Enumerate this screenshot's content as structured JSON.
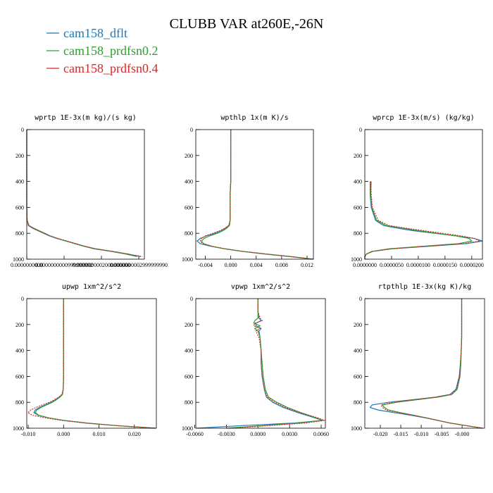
{
  "title": "CLUBB VAR at260E,-26N",
  "chart_data": [
    {
      "type": "line",
      "title": "wprtp  1E-3x(m kg)/(s kg)",
      "yaxis_inverted": true,
      "y": [
        0,
        100,
        200,
        300,
        400,
        500,
        600,
        700,
        740,
        760,
        780,
        800,
        820,
        840,
        860,
        880,
        900,
        920,
        940,
        960,
        980,
        1000
      ],
      "xlim": [
        0,
        3.15e-10
      ],
      "ylim": [
        0,
        1000
      ],
      "xticks": [
        {
          "value": 0,
          "label": "0.0000000000"
        },
        {
          "value": 1e-10,
          "label": "0.0000000000999999992"
        },
        {
          "value": 2e-10,
          "label": "0.0000000002000000000"
        },
        {
          "value": 3e-10,
          "label": "0.0000000002999999990"
        }
      ],
      "yticks": [
        0,
        200,
        400,
        600,
        800,
        1000
      ],
      "series": [
        {
          "name": "cam158_dflt",
          "color": "#1f77b4",
          "dash": false,
          "values": [
            0,
            0,
            0,
            0,
            0,
            0,
            0,
            1e-12,
            4e-12,
            1.5e-11,
            3e-11,
            4.5e-11,
            6e-11,
            8e-11,
            1.05e-10,
            1.3e-10,
            1.55e-10,
            1.85e-10,
            2.3e-10,
            2.7e-10,
            3.05e-10,
            null
          ]
        },
        {
          "name": "cam158_prdfsn0.2",
          "color": "#2ca02c",
          "dash": false,
          "values": [
            0,
            0,
            0,
            0,
            0,
            0,
            0,
            1e-12,
            6e-12,
            1.8e-11,
            3.3e-11,
            4.8e-11,
            6.3e-11,
            8.3e-11,
            1.05e-10,
            1.28e-10,
            1.52e-10,
            1.8e-10,
            2.25e-10,
            2.65e-10,
            2.95e-10,
            null
          ]
        },
        {
          "name": "cam158_prdfsn0.4",
          "color": "#d62728",
          "dash": true,
          "values": [
            0,
            0,
            0,
            0,
            0,
            0,
            0,
            1e-12,
            5e-12,
            1.7e-11,
            3.2e-11,
            4.7e-11,
            6.2e-11,
            8.2e-11,
            1.08e-10,
            1.32e-10,
            1.55e-10,
            1.83e-10,
            2.28e-10,
            2.7e-10,
            3.1e-10,
            null
          ]
        }
      ]
    },
    {
      "type": "line",
      "title": "wpthlp  1x(m K)/s",
      "yaxis_inverted": true,
      "y": [
        0,
        100,
        200,
        300,
        400,
        500,
        600,
        700,
        740,
        760,
        780,
        800,
        820,
        840,
        860,
        880,
        900,
        920,
        940,
        960,
        980,
        1000
      ],
      "xlim": [
        -0.0055,
        0.013
      ],
      "ylim": [
        0,
        1000
      ],
      "xticks": [
        -0.004,
        {
          "value": 0,
          "label": "0.000"
        },
        0.004,
        0.008,
        0.012
      ],
      "yticks": [
        0,
        200,
        400,
        600,
        800,
        1000
      ],
      "series": [
        {
          "name": "cam158_dflt",
          "color": "#1f77b4",
          "dash": false,
          "values": [
            0,
            0,
            0,
            0,
            0,
            -0.0001,
            -0.0001,
            -0.0001,
            -0.0003,
            -0.0008,
            -0.0015,
            -0.0025,
            -0.0038,
            -0.0048,
            -0.0053,
            -0.0048,
            -0.0032,
            -0.001,
            0.0018,
            0.0055,
            0.0095,
            0.013
          ]
        },
        {
          "name": "cam158_prdfsn0.2",
          "color": "#2ca02c",
          "dash": false,
          "values": [
            0,
            0,
            0,
            0,
            0,
            -0.0001,
            -0.0001,
            -0.0001,
            -0.0002,
            -0.0006,
            -0.0012,
            -0.0021,
            -0.0033,
            -0.0042,
            -0.0046,
            -0.0043,
            -0.003,
            -0.0009,
            0.0018,
            0.0053,
            0.0092,
            0.0128
          ]
        },
        {
          "name": "cam158_prdfsn0.4",
          "color": "#d62728",
          "dash": true,
          "values": [
            0,
            0,
            0,
            0,
            0,
            -0.0001,
            -0.0001,
            -0.0001,
            -0.0003,
            -0.0009,
            -0.0017,
            -0.0028,
            -0.004,
            -0.0046,
            -0.0048,
            -0.0044,
            -0.003,
            -0.0008,
            0.002,
            0.0056,
            0.0095,
            0.013
          ]
        }
      ]
    },
    {
      "type": "line",
      "title": "wprcp  1E-3x(m/s) (kg/kg)",
      "yaxis_inverted": true,
      "y": [
        0,
        100,
        200,
        300,
        400,
        500,
        600,
        700,
        740,
        760,
        780,
        800,
        820,
        840,
        860,
        880,
        900,
        920,
        940,
        960,
        980,
        1000
      ],
      "xlim": [
        0,
        2.2e-05
      ],
      "ylim": [
        0,
        1000
      ],
      "xticks": [
        {
          "value": 0,
          "label": "0.0000000"
        },
        {
          "value": 5e-06,
          "label": "0.0000050"
        },
        {
          "value": 1e-05,
          "label": "0.0000100"
        },
        {
          "value": 1.5e-05,
          "label": "0.0000150"
        },
        {
          "value": 2e-05,
          "label": "0.0000200"
        }
      ],
      "yticks": [
        0,
        200,
        400,
        600,
        800,
        1000
      ],
      "series": [
        {
          "name": "cam158_dflt",
          "color": "#1f77b4",
          "dash": false,
          "values": [
            null,
            null,
            null,
            null,
            1e-06,
            1e-06,
            1.2e-06,
            2e-06,
            3.5e-06,
            6e-06,
            9e-06,
            1.3e-05,
            1.7e-05,
            2.05e-05,
            2.2e-05,
            1.9e-05,
            1.2e-05,
            5e-06,
            1.5e-06,
            3e-07,
            0,
            0
          ]
        },
        {
          "name": "cam158_prdfsn0.2",
          "color": "#2ca02c",
          "dash": false,
          "values": [
            null,
            null,
            null,
            null,
            1.2e-06,
            1.1e-06,
            1.3e-06,
            2.2e-06,
            4e-06,
            7e-06,
            1e-05,
            1.35e-05,
            1.7e-05,
            1.95e-05,
            2e-05,
            1.75e-05,
            1.1e-05,
            4.5e-06,
            1.3e-06,
            3e-07,
            0,
            0
          ]
        },
        {
          "name": "cam158_prdfsn0.4",
          "color": "#d62728",
          "dash": true,
          "values": [
            null,
            null,
            null,
            null,
            1.1e-06,
            1.2e-06,
            1.4e-06,
            2.5e-06,
            4.5e-06,
            7.5e-06,
            1.1e-05,
            1.45e-05,
            1.8e-05,
            2.05e-05,
            2.15e-05,
            1.85e-05,
            1.15e-05,
            5e-06,
            1.5e-06,
            3e-07,
            0,
            0
          ]
        }
      ]
    },
    {
      "type": "line",
      "title": "upwp  1xm^2/s^2",
      "yaxis_inverted": true,
      "y": [
        0,
        100,
        200,
        300,
        400,
        500,
        600,
        700,
        740,
        760,
        780,
        800,
        820,
        840,
        860,
        880,
        900,
        920,
        940,
        960,
        980,
        1000
      ],
      "xlim": [
        -0.0104,
        0.0262
      ],
      "ylim": [
        0,
        1000
      ],
      "xticks": [
        {
          "value": -0.01,
          "label": "-0.010"
        },
        {
          "value": 0,
          "label": "0.000"
        },
        {
          "value": 0.01,
          "label": "0.010"
        },
        {
          "value": 0.02,
          "label": "0.020"
        }
      ],
      "yticks": [
        0,
        200,
        400,
        600,
        800,
        1000
      ],
      "series": [
        {
          "name": "cam158_dflt",
          "color": "#1f77b4",
          "dash": false,
          "values": [
            0,
            0,
            0,
            0,
            0,
            0,
            0,
            -0.0001,
            -0.0004,
            -0.0012,
            -0.0022,
            -0.0035,
            -0.0052,
            -0.0068,
            -0.008,
            -0.0084,
            -0.0072,
            -0.0042,
            0.0002,
            0.0065,
            0.015,
            0.026
          ]
        },
        {
          "name": "cam158_prdfsn0.2",
          "color": "#2ca02c",
          "dash": false,
          "values": [
            0,
            0,
            0,
            0,
            0,
            0,
            0,
            -0.0001,
            -0.0003,
            -0.001,
            -0.002,
            -0.0032,
            -0.0048,
            -0.0064,
            -0.0076,
            -0.008,
            -0.007,
            -0.0042,
            0,
            0.0062,
            0.0148,
            0.0258
          ]
        },
        {
          "name": "cam158_prdfsn0.4",
          "color": "#d62728",
          "dash": true,
          "values": [
            0,
            0,
            0,
            0,
            0,
            0,
            0,
            -0.0001,
            -0.0005,
            -0.0014,
            -0.0026,
            -0.004,
            -0.006,
            -0.0078,
            -0.0093,
            -0.0101,
            -0.0088,
            -0.0052,
            -0.0005,
            0.0062,
            0.015,
            0.026
          ]
        }
      ]
    },
    {
      "type": "line",
      "title": "vpwp  1xm^2/s^2",
      "yaxis_inverted": true,
      "y": [
        0,
        100,
        150,
        170,
        190,
        210,
        230,
        250,
        300,
        400,
        500,
        600,
        700,
        760,
        800,
        840,
        880,
        920,
        940,
        960,
        980,
        1000
      ],
      "xlim": [
        -0.0059,
        0.0064
      ],
      "ylim": [
        0,
        1000
      ],
      "xticks": [
        {
          "value": -0.006,
          "label": "-0.0060"
        },
        {
          "value": -0.003,
          "label": "-0.0030"
        },
        {
          "value": 0,
          "label": "0.0000"
        },
        {
          "value": 0.003,
          "label": "0.0030"
        },
        {
          "value": 0.006,
          "label": "0.0060"
        }
      ],
      "yticks": [
        0,
        200,
        400,
        600,
        800,
        1000
      ],
      "series": [
        {
          "name": "cam158_dflt",
          "color": "#1f77b4",
          "dash": false,
          "values": [
            0,
            0,
            0.0001,
            0.0003,
            -0.0002,
            -0.0002,
            0.0003,
            0.0001,
            0.0002,
            0.0003,
            0.0003,
            0.0004,
            0.0006,
            0.0008,
            0.0014,
            0.0024,
            0.0038,
            0.0054,
            0.0061,
            0.0035,
            -0.0015,
            -0.0058
          ]
        },
        {
          "name": "cam158_prdfsn0.2",
          "color": "#2ca02c",
          "dash": false,
          "values": [
            0,
            0,
            0,
            -0.0003,
            -0.0004,
            0.0002,
            -0.0003,
            0,
            0.0002,
            0.0003,
            0.0004,
            0.0005,
            0.0007,
            0.001,
            0.0018,
            0.0028,
            0.0041,
            0.0055,
            0.0062,
            0.004,
            0.0005,
            -0.003
          ]
        },
        {
          "name": "cam158_prdfsn0.4",
          "color": "#d62728",
          "dash": true,
          "values": [
            0,
            0,
            0.0002,
            0.0004,
            -0.0003,
            -0.0004,
            0.0002,
            -0.0002,
            0.0001,
            0.0003,
            0.0003,
            0.0004,
            0.0006,
            0.0009,
            0.0016,
            0.0026,
            0.004,
            0.0057,
            0.0063,
            0.0045,
            0.001,
            -0.0025
          ]
        }
      ]
    },
    {
      "type": "line",
      "title": "rtpthlp  1E-3x(kg K)/kg",
      "yaxis_inverted": true,
      "y": [
        0,
        100,
        200,
        300,
        400,
        500,
        600,
        700,
        740,
        760,
        780,
        800,
        820,
        840,
        860,
        880,
        900,
        920,
        940,
        960,
        980,
        1000
      ],
      "xlim": [
        -0.0238,
        0.0055
      ],
      "ylim": [
        0,
        1000
      ],
      "xticks": [
        {
          "value": -0.02,
          "label": "-0.020"
        },
        {
          "value": -0.015,
          "label": "-0.015"
        },
        {
          "value": -0.01,
          "label": "-0.010"
        },
        {
          "value": -0.005,
          "label": "-0.005"
        },
        {
          "value": 0,
          "label": "-0.000"
        }
      ],
      "yticks": [
        0,
        200,
        400,
        600,
        800,
        1000
      ],
      "series": [
        {
          "name": "cam158_dflt",
          "color": "#1f77b4",
          "dash": false,
          "values": [
            -0.0001,
            -0.0001,
            -0.0001,
            -0.0001,
            -0.0002,
            -0.0004,
            -0.0007,
            -0.0015,
            -0.003,
            -0.0065,
            -0.012,
            -0.018,
            -0.022,
            -0.0225,
            -0.0205,
            -0.0165,
            -0.0125,
            -0.009,
            -0.006,
            -0.003,
            0.001,
            0.005
          ]
        },
        {
          "name": "cam158_prdfsn0.2",
          "color": "#2ca02c",
          "dash": false,
          "values": [
            -0.0001,
            -0.0001,
            -0.0001,
            -0.0001,
            -0.0002,
            -0.0003,
            -0.0005,
            -0.0012,
            -0.0025,
            -0.0058,
            -0.011,
            -0.016,
            -0.0195,
            -0.019,
            -0.018,
            -0.015,
            -0.0118,
            -0.0087,
            -0.0058,
            -0.003,
            0.001,
            0.005
          ]
        },
        {
          "name": "cam158_prdfsn0.4",
          "color": "#d62728",
          "dash": true,
          "values": [
            -0.0001,
            -0.0001,
            -0.0001,
            -0.0001,
            -0.0002,
            -0.0004,
            -0.0006,
            -0.0013,
            -0.0028,
            -0.0062,
            -0.0115,
            -0.0168,
            -0.0198,
            -0.0195,
            -0.0185,
            -0.0155,
            -0.012,
            -0.0088,
            -0.0059,
            -0.003,
            0.001,
            0.005
          ]
        }
      ]
    }
  ]
}
